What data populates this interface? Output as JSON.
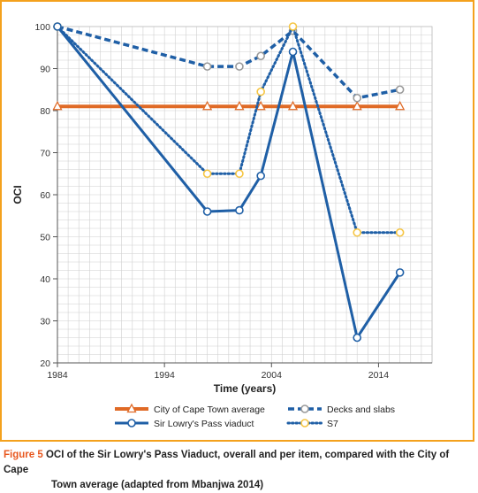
{
  "chart_data": {
    "type": "line",
    "xlabel": "Time (years)",
    "ylabel": "OCI",
    "xlim": [
      1984,
      2019
    ],
    "ylim": [
      20,
      100
    ],
    "xticks": [
      1984,
      1994,
      2004,
      2014
    ],
    "yticks": [
      20,
      30,
      40,
      50,
      60,
      70,
      80,
      90,
      100
    ],
    "grid": true,
    "legend_position": "bottom",
    "series": [
      {
        "name": "City of Cape Town average",
        "color": "#e06a26",
        "style": "solid",
        "marker": "triangle",
        "points": [
          [
            1984,
            81
          ],
          [
            1998,
            81
          ],
          [
            2001,
            81
          ],
          [
            2003,
            81
          ],
          [
            2006,
            81
          ],
          [
            2012,
            81
          ],
          [
            2016,
            81
          ]
        ]
      },
      {
        "name": "Decks and slabs",
        "color": "#1f5fa6",
        "style": "dashed",
        "marker": "circle",
        "points": [
          [
            1984,
            100
          ],
          [
            1998,
            90.5
          ],
          [
            2001,
            90.5
          ],
          [
            2003,
            93
          ],
          [
            2006,
            99
          ],
          [
            2012,
            83
          ],
          [
            2016,
            85
          ]
        ]
      },
      {
        "name": "Sir Lowry's Pass viaduct",
        "color": "#1f5fa6",
        "style": "solid",
        "marker": "circle",
        "points": [
          [
            1984,
            100
          ],
          [
            1998,
            56
          ],
          [
            2001,
            56.3
          ],
          [
            2003,
            64.5
          ],
          [
            2006,
            94
          ],
          [
            2012,
            26
          ],
          [
            2016,
            41.5
          ]
        ]
      },
      {
        "name": "S7",
        "color": "#1f5fa6",
        "style": "dotted",
        "marker": "circle-yellow",
        "points": [
          [
            1984,
            100
          ],
          [
            1998,
            65
          ],
          [
            2001,
            65
          ],
          [
            2003,
            84.5
          ],
          [
            2006,
            100
          ],
          [
            2012,
            51
          ],
          [
            2016,
            51
          ]
        ]
      }
    ]
  },
  "caption": {
    "label": "Figure 5",
    "text_line1": "OCI of the Sir Lowry's Pass Viaduct, overall and per item, compared with the City of Cape",
    "text_line2": "Town average (adapted from Mbanjwa 2014)"
  },
  "colors": {
    "orange": "#e06a26",
    "blue": "#1f5fa6",
    "marker_fill_yellow": "#f6c542",
    "frame": "#f4a11d",
    "caption_label": "#e8571e",
    "grid": "#d0d0d0"
  }
}
